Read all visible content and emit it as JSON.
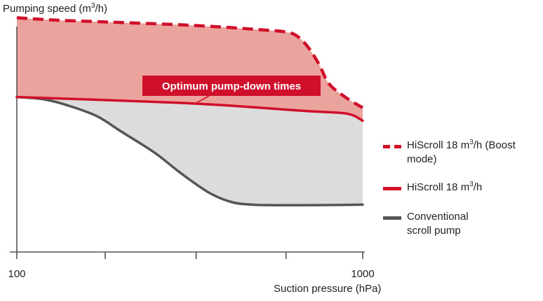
{
  "chart_data": {
    "type": "area",
    "ylabel_pre": "Pumping speed (m",
    "ylabel_sup": "3",
    "ylabel_post": "/h)",
    "xlabel": "Suction pressure (hPa)",
    "x_scale": "log",
    "xlim": [
      100,
      1000
    ],
    "x_tick_labels": [
      {
        "value": 100,
        "label": "100"
      },
      {
        "value": 1000,
        "label": "1000"
      }
    ],
    "x_minor_ticks": [
      180,
      330,
      600
    ],
    "ylim": [
      0,
      100
    ],
    "y_tick_labels": [],
    "grid": false,
    "series": [
      {
        "key": "boost",
        "style": "dashed",
        "color": "#d0102b",
        "x": [
          100,
          130,
          200,
          300,
          400,
          500,
          600,
          650,
          700,
          750,
          800,
          900,
          1000
        ],
        "y": [
          99,
          98,
          97,
          96,
          95,
          94,
          93,
          91,
          86,
          79,
          71,
          65,
          61
        ]
      },
      {
        "key": "hiscroll",
        "style": "solid",
        "color": "#d0102b",
        "x": [
          100,
          200,
          300,
          400,
          500,
          700,
          900,
          1000
        ],
        "y": [
          65.5,
          64,
          63,
          62,
          61,
          59.5,
          58.5,
          55.5
        ]
      },
      {
        "key": "conventional",
        "style": "solid",
        "color": "#555555",
        "x": [
          100,
          120,
          140,
          170,
          200,
          250,
          300,
          360,
          420,
          480,
          550,
          700,
          1000
        ],
        "y": [
          65.5,
          64.5,
          62,
          57.5,
          51,
          42,
          33,
          25,
          21,
          20,
          19.8,
          19.8,
          20
        ]
      }
    ],
    "fills": {
      "upper_band_color": "#eba49d",
      "lower_band_color": "#dcdcdc"
    },
    "annotation": {
      "text": "Optimum pump-down times",
      "color": "#d0102b",
      "anchor_x": 330,
      "anchor_y": 63
    },
    "legend": {
      "placement": "right",
      "items": [
        {
          "key": "boost",
          "lines": [
            "HiScroll 18 m",
            "3",
            "/h (Boost",
            "mode)"
          ]
        },
        {
          "key": "hiscroll",
          "lines": [
            "HiScroll 18 m",
            "3",
            "/h"
          ]
        },
        {
          "key": "conventional",
          "lines": [
            "Conventional",
            "scroll pump"
          ]
        }
      ]
    }
  }
}
